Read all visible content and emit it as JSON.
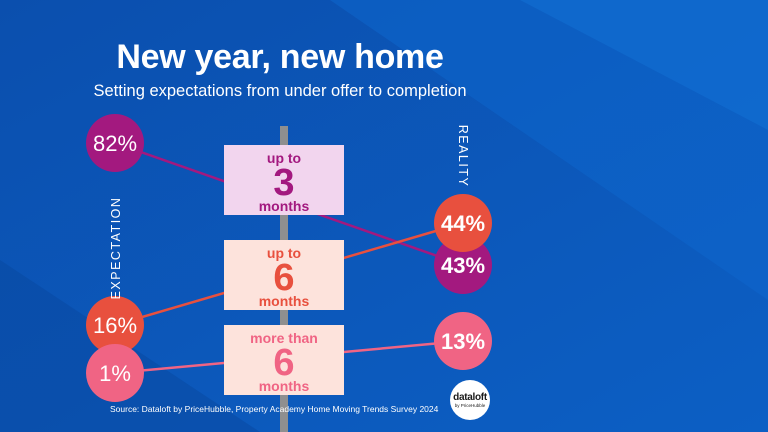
{
  "header": {
    "title": "New year, new home",
    "subtitle": "Setting expectations from under offer to completion"
  },
  "axis_labels": {
    "expectation": "EXPECTATION",
    "reality": "REALITY"
  },
  "chart_data": {
    "type": "slope",
    "title": "New year, new home",
    "subtitle": "Setting expectations from under offer to completion",
    "columns": [
      "EXPECTATION",
      "REALITY"
    ],
    "unit": "%",
    "categories": [
      {
        "top": "up to",
        "number": "3",
        "bottom": "months",
        "expectation": 82,
        "expectation_label": "82%",
        "reality": 43,
        "reality_label": "43%"
      },
      {
        "top": "up to",
        "number": "6",
        "bottom": "months",
        "expectation": 16,
        "expectation_label": "16%",
        "reality": 44,
        "reality_label": "44%"
      },
      {
        "top": "more than",
        "number": "6",
        "bottom": "months",
        "expectation": 1,
        "expectation_label": "1%",
        "reality": 13,
        "reality_label": "13%"
      }
    ],
    "colors": {
      "up_to_3": "#a3197f",
      "up_to_6": "#e8503e",
      "more_than_6": "#f06484",
      "background": "#0a56b8",
      "box_fill_3": "#f2d5ee",
      "box_fill_6": "#fde3dc"
    }
  },
  "footer": {
    "source": "Source: Dataloft by PriceHubble, Property Academy Home Moving Trends Survey 2024",
    "logo_name": "dataloft",
    "logo_sub": "by PriceHubble"
  }
}
